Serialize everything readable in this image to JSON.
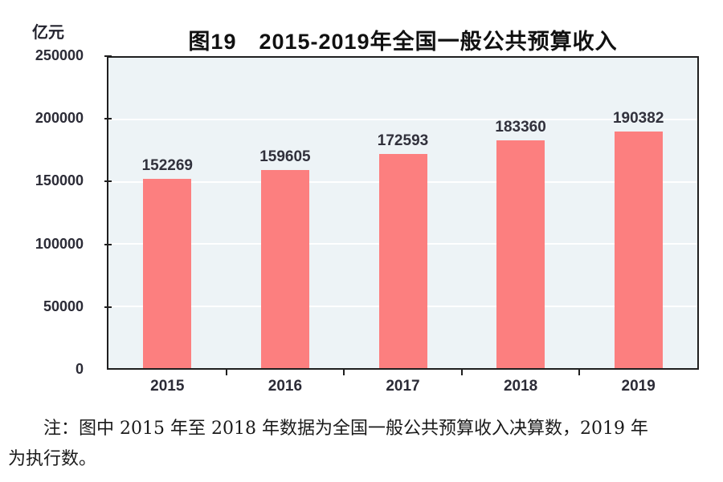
{
  "chart_data": {
    "type": "bar",
    "title": "图19　2015-2019年全国一般公共预算收入",
    "unit_label": "亿元",
    "categories": [
      "2015",
      "2016",
      "2017",
      "2018",
      "2019"
    ],
    "values": [
      152269,
      159605,
      172593,
      183360,
      190382
    ],
    "ylim": [
      0,
      250000
    ],
    "yticks": [
      0,
      50000,
      100000,
      150000,
      200000,
      250000
    ],
    "grid": true,
    "legend": "none",
    "colors": {
      "bar": "#fc7f7f",
      "plot_background": "#edf3f6",
      "gridline": "#ffffff",
      "axis": "#1f1f1f",
      "value_label": "#31313c"
    }
  },
  "note": {
    "text": "注：图中 2015 年至 2018 年数据为全国一般公共预算收入决算数，2019 年\n为执行数。"
  }
}
